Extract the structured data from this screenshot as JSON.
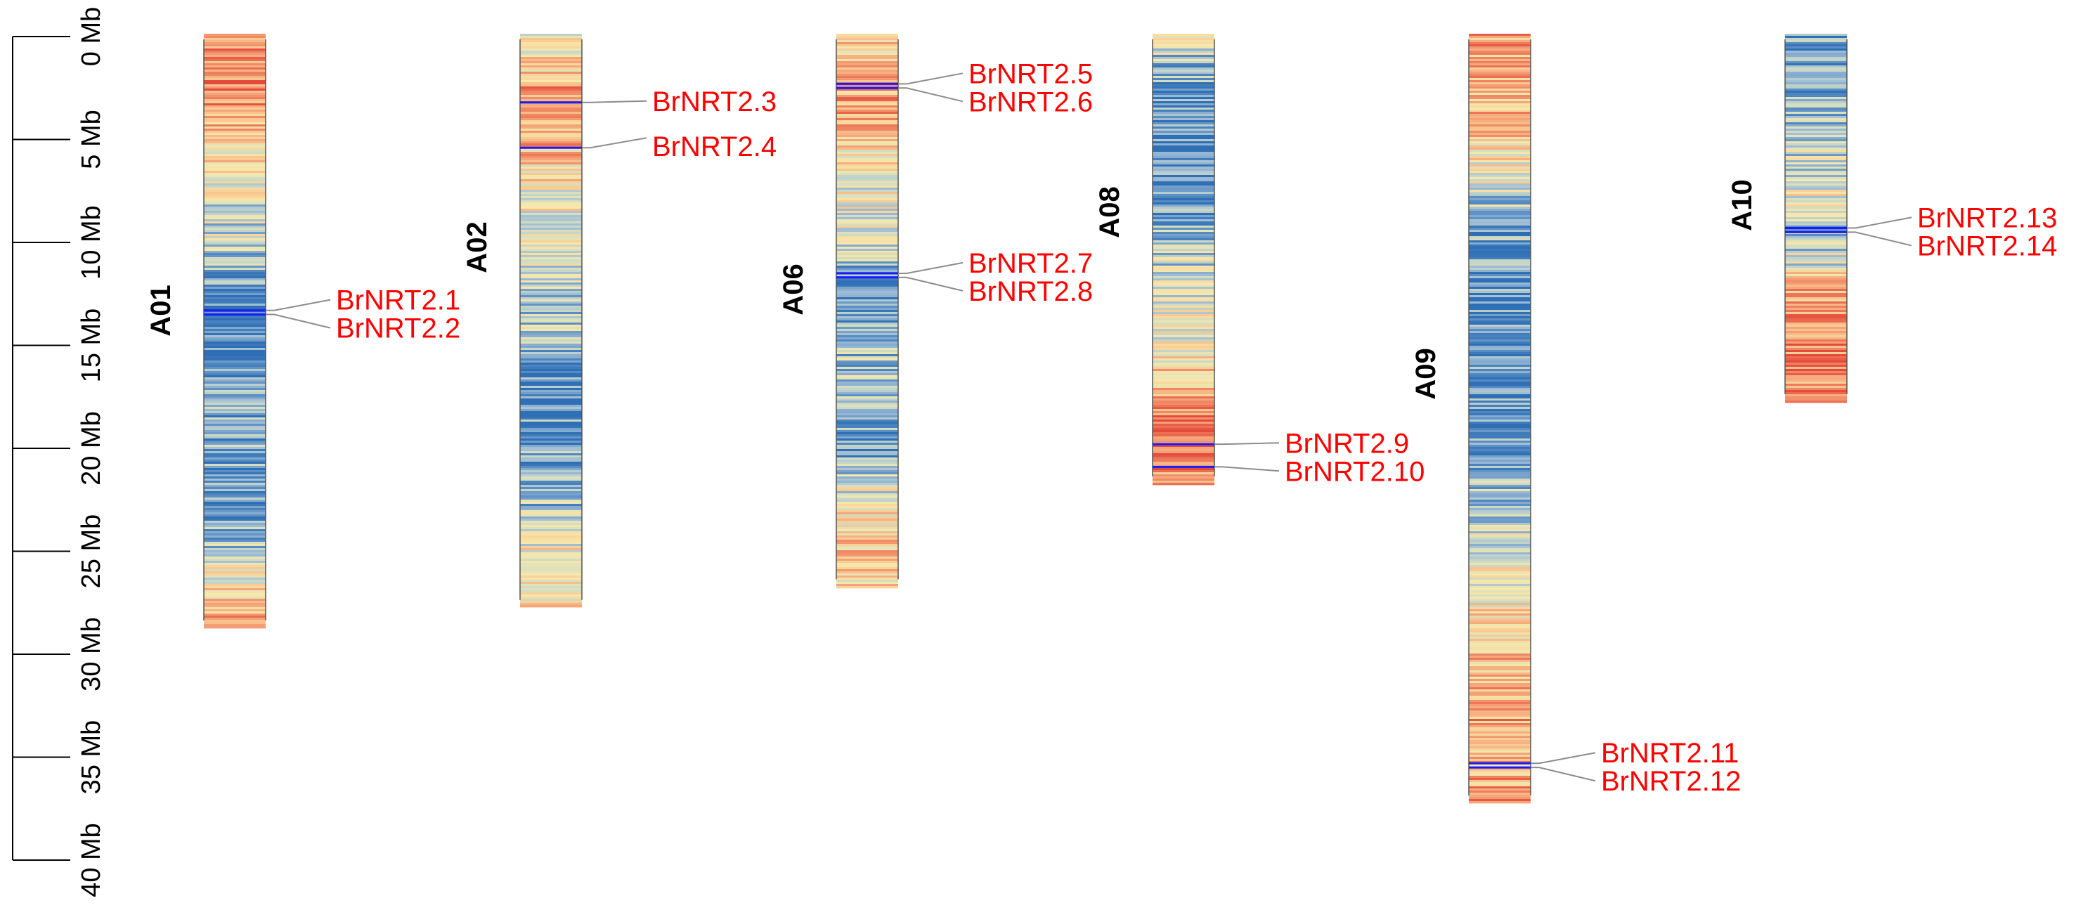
{
  "scale": {
    "unit": "Mb",
    "max_mb": 40,
    "ticks": [
      {
        "mb": 0,
        "label": "0 Mb"
      },
      {
        "mb": 5,
        "label": "5 Mb"
      },
      {
        "mb": 10,
        "label": "10 Mb"
      },
      {
        "mb": 15,
        "label": "15 Mb"
      },
      {
        "mb": 20,
        "label": "20 Mb"
      },
      {
        "mb": 25,
        "label": "25 Mb"
      },
      {
        "mb": 30,
        "label": "30 Mb"
      },
      {
        "mb": 35,
        "label": "35 Mb"
      },
      {
        "mb": 40,
        "label": "40 Mb"
      }
    ]
  },
  "colors": {
    "gene_label": "#ff0000",
    "marker_line": "#1a1aff",
    "leader_line": "#8c8c8c",
    "axis": "#000000",
    "density_palette": [
      "#2e6fb5",
      "#5b8fc4",
      "#9bbad6",
      "#cfdcc4",
      "#f7e8ac",
      "#f9cc93",
      "#f6a77b",
      "#ee7a5a",
      "#e34a3c"
    ]
  },
  "chromosomes": [
    {
      "name": "A01",
      "length_mb": 28.5,
      "density_profile": [
        [
          0,
          0.8
        ],
        [
          2.0,
          0.85
        ],
        [
          4.0,
          0.7
        ],
        [
          6.0,
          0.55
        ],
        [
          8.0,
          0.4
        ],
        [
          10.0,
          0.35
        ],
        [
          12.0,
          0.2
        ],
        [
          14.0,
          0.08
        ],
        [
          16.0,
          0.12
        ],
        [
          18.0,
          0.18
        ],
        [
          20.0,
          0.2
        ],
        [
          22.0,
          0.15
        ],
        [
          24.0,
          0.25
        ],
        [
          26.0,
          0.45
        ],
        [
          28.5,
          0.75
        ]
      ],
      "genes": [
        {
          "name": "BrNRT2.1",
          "mb": 13.3
        },
        {
          "name": "BrNRT2.2",
          "mb": 13.5
        }
      ]
    },
    {
      "name": "A02",
      "length_mb": 27.5,
      "density_profile": [
        [
          0,
          0.5
        ],
        [
          1.5,
          0.6
        ],
        [
          3.0,
          0.85
        ],
        [
          5.0,
          0.72
        ],
        [
          7.0,
          0.55
        ],
        [
          9.0,
          0.45
        ],
        [
          11.0,
          0.4
        ],
        [
          13.0,
          0.35
        ],
        [
          15.0,
          0.25
        ],
        [
          16.0,
          0.1
        ],
        [
          18.0,
          0.12
        ],
        [
          20.0,
          0.18
        ],
        [
          22.0,
          0.22
        ],
        [
          24.0,
          0.4
        ],
        [
          26.0,
          0.6
        ],
        [
          27.5,
          0.55
        ]
      ],
      "genes": [
        {
          "name": "BrNRT2.3",
          "mb": 3.2
        },
        {
          "name": "BrNRT2.4",
          "mb": 5.4
        }
      ]
    },
    {
      "name": "A06",
      "length_mb": 26.5,
      "density_profile": [
        [
          0,
          0.6
        ],
        [
          2.0,
          0.7
        ],
        [
          4.0,
          0.75
        ],
        [
          6.0,
          0.55
        ],
        [
          8.0,
          0.45
        ],
        [
          10.0,
          0.4
        ],
        [
          12.0,
          0.12
        ],
        [
          14.0,
          0.2
        ],
        [
          16.0,
          0.3
        ],
        [
          18.0,
          0.35
        ],
        [
          19.5,
          0.08
        ],
        [
          21.0,
          0.3
        ],
        [
          23.0,
          0.55
        ],
        [
          25.0,
          0.65
        ],
        [
          26.5,
          0.6
        ]
      ],
      "genes": [
        {
          "name": "BrNRT2.5",
          "mb": 2.3
        },
        {
          "name": "BrNRT2.6",
          "mb": 2.5
        },
        {
          "name": "BrNRT2.7",
          "mb": 11.5
        },
        {
          "name": "BrNRT2.8",
          "mb": 11.7
        }
      ]
    },
    {
      "name": "A08",
      "length_mb": 21.5,
      "density_profile": [
        [
          0,
          0.4
        ],
        [
          2.0,
          0.2
        ],
        [
          4.0,
          0.1
        ],
        [
          6.0,
          0.12
        ],
        [
          8.0,
          0.15
        ],
        [
          10.0,
          0.3
        ],
        [
          12.0,
          0.4
        ],
        [
          14.0,
          0.45
        ],
        [
          16.0,
          0.6
        ],
        [
          18.0,
          0.75
        ],
        [
          19.5,
          0.95
        ],
        [
          21.5,
          0.8
        ]
      ],
      "genes": [
        {
          "name": "BrNRT2.9",
          "mb": 19.8
        },
        {
          "name": "BrNRT2.10",
          "mb": 20.9
        }
      ]
    },
    {
      "name": "A09",
      "length_mb": 37.0,
      "density_profile": [
        [
          0,
          0.75
        ],
        [
          3.0,
          0.7
        ],
        [
          6.0,
          0.55
        ],
        [
          9.0,
          0.2
        ],
        [
          12.0,
          0.12
        ],
        [
          15.0,
          0.15
        ],
        [
          18.0,
          0.12
        ],
        [
          21.0,
          0.2
        ],
        [
          24.0,
          0.35
        ],
        [
          27.0,
          0.5
        ],
        [
          30.0,
          0.65
        ],
        [
          33.0,
          0.75
        ],
        [
          35.0,
          0.7
        ],
        [
          37.0,
          0.75
        ]
      ],
      "genes": [
        {
          "name": "BrNRT2.11",
          "mb": 35.3
        },
        {
          "name": "BrNRT2.12",
          "mb": 35.5
        }
      ]
    },
    {
      "name": "A10",
      "length_mb": 17.5,
      "density_profile": [
        [
          0,
          0.15
        ],
        [
          2.0,
          0.2
        ],
        [
          4.0,
          0.3
        ],
        [
          6.0,
          0.35
        ],
        [
          8.0,
          0.5
        ],
        [
          9.0,
          0.3
        ],
        [
          11.0,
          0.4
        ],
        [
          12.0,
          0.7
        ],
        [
          14.0,
          0.8
        ],
        [
          16.0,
          0.85
        ],
        [
          17.5,
          0.75
        ]
      ],
      "genes": [
        {
          "name": "BrNRT2.13",
          "mb": 9.3
        },
        {
          "name": "BrNRT2.14",
          "mb": 9.5
        }
      ]
    }
  ]
}
